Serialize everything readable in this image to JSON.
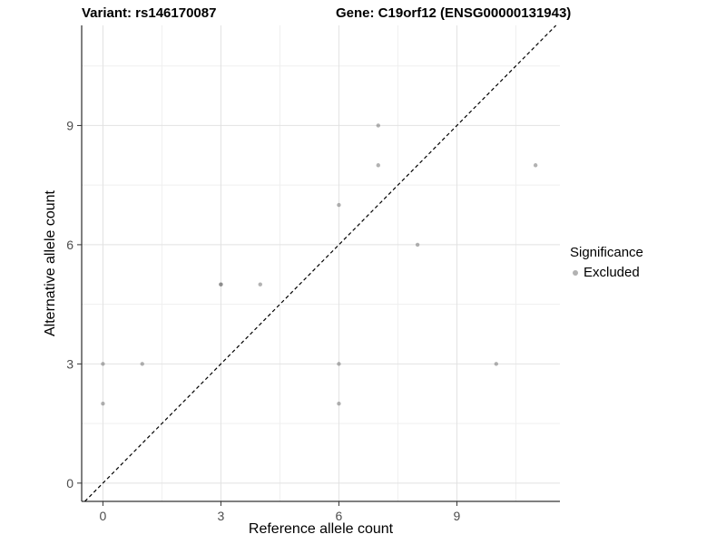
{
  "chart_data": {
    "type": "scatter",
    "title_left": "Variant: rs146170087",
    "title_right": "Gene: C19orf12 (ENSG00000131943)",
    "xlabel": "Reference allele count",
    "ylabel": "Alternative allele count",
    "xticks": [
      0,
      3,
      6,
      9
    ],
    "yticks": [
      0,
      3,
      6,
      9
    ],
    "x_minor": [
      1.5,
      4.5,
      7.5,
      10.5
    ],
    "y_minor": [
      1.5,
      4.5,
      7.5,
      10.5
    ],
    "xlim": [
      -0.54,
      11.62
    ],
    "ylim": [
      -0.46,
      11.52
    ],
    "grid": "on",
    "grid_major_color": "#e2e2e2",
    "grid_minor_color": "#efefef",
    "axis_line_color": "#000000",
    "tick_color": "#333333",
    "point_color": "#737373",
    "point_opacity": 0.55,
    "points": [
      [
        0,
        2
      ],
      [
        0,
        3
      ],
      [
        1,
        3
      ],
      [
        3,
        5
      ],
      [
        3,
        5
      ],
      [
        4,
        5
      ],
      [
        6,
        2
      ],
      [
        6,
        3
      ],
      [
        6,
        7
      ],
      [
        7,
        8
      ],
      [
        7,
        9
      ],
      [
        8,
        6
      ],
      [
        10,
        3
      ],
      [
        11,
        8
      ]
    ],
    "identity_line": {
      "style": "dashed",
      "color": "#000000",
      "slope": 1,
      "intercept": 0
    },
    "legend": {
      "position": "right",
      "title": "Significance",
      "items": [
        {
          "label": "Excluded",
          "color": "#b2b2b2"
        }
      ]
    }
  }
}
